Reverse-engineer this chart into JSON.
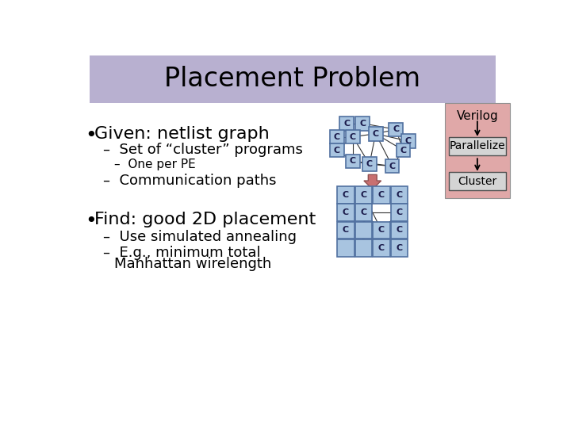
{
  "title": "Placement Problem",
  "title_bg": "#b8b0d0",
  "bg_color": "#ffffff",
  "bullet1": "Given: netlist graph",
  "sub1a": "Set of “cluster” programs",
  "sub1a1": "One per PE",
  "sub1b": "Communication paths",
  "bullet2": "Find: good 2D placement",
  "sub2a": "Use simulated annealing",
  "sub2b_1": "E.g., minimum total",
  "sub2b_2": "Manhattan wirelength",
  "node_fill": "#a8c4e0",
  "node_edge": "#5070a0",
  "node_label": "C",
  "arrow_fill": "#c87070",
  "arrow_edge": "#905050",
  "verilog_bg": "#e0a8a8",
  "box_bg": "#d4d4d4",
  "box_edge": "#505050",
  "title_font": 24,
  "b1_font": 16,
  "s1_font": 13,
  "s1a_font": 11,
  "b2_font": 16,
  "s2_font": 13
}
